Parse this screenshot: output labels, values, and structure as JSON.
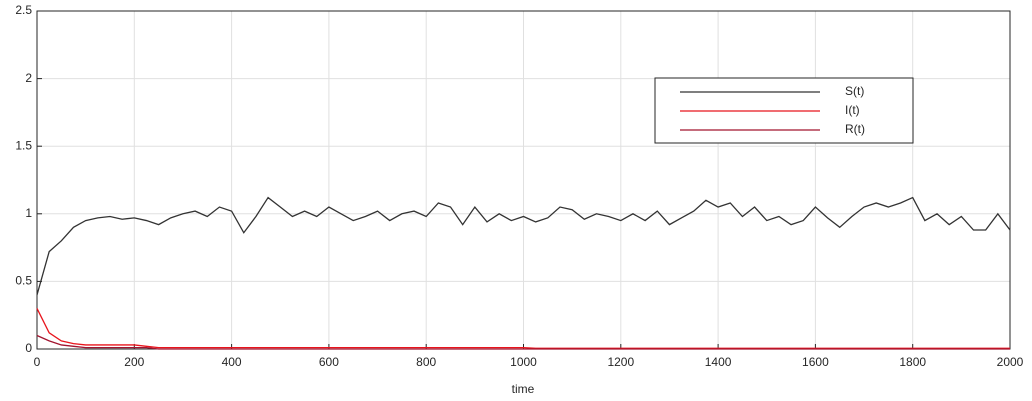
{
  "chart_data": {
    "type": "line",
    "x_label": "time",
    "x": [
      0,
      25,
      50,
      75,
      100,
      125,
      150,
      175,
      200,
      225,
      250,
      275,
      300,
      325,
      350,
      375,
      400,
      425,
      450,
      475,
      500,
      525,
      550,
      575,
      600,
      625,
      650,
      675,
      700,
      725,
      750,
      775,
      800,
      825,
      850,
      875,
      900,
      925,
      950,
      975,
      1000,
      1025,
      1050,
      1075,
      1100,
      1125,
      1150,
      1175,
      1200,
      1225,
      1250,
      1275,
      1300,
      1325,
      1350,
      1375,
      1400,
      1425,
      1450,
      1475,
      1500,
      1525,
      1550,
      1575,
      1600,
      1625,
      1650,
      1675,
      1700,
      1725,
      1750,
      1775,
      1800,
      1825,
      1850,
      1875,
      1900,
      1925,
      1950,
      1975,
      2000
    ],
    "series": [
      {
        "name": "S(t)",
        "color": "#333333",
        "values": [
          0.4,
          0.72,
          0.8,
          0.9,
          0.95,
          0.97,
          0.98,
          0.96,
          0.97,
          0.95,
          0.92,
          0.97,
          1.0,
          1.02,
          0.98,
          1.05,
          1.02,
          0.86,
          0.98,
          1.12,
          1.05,
          0.98,
          1.02,
          0.98,
          1.05,
          1.0,
          0.95,
          0.98,
          1.02,
          0.95,
          1.0,
          1.02,
          0.98,
          1.08,
          1.05,
          0.92,
          1.05,
          0.94,
          1.0,
          0.95,
          0.98,
          0.94,
          0.97,
          1.05,
          1.03,
          0.96,
          1.0,
          0.98,
          0.95,
          1.0,
          0.95,
          1.02,
          0.92,
          0.97,
          1.02,
          1.1,
          1.05,
          1.08,
          0.98,
          1.05,
          0.95,
          0.98,
          0.92,
          0.95,
          1.05,
          0.97,
          0.9,
          0.98,
          1.05,
          1.08,
          1.05,
          1.08,
          1.12,
          0.95,
          1.0,
          0.92,
          0.98,
          0.88,
          0.88,
          1.0,
          0.88
        ]
      },
      {
        "name": "I(t)",
        "color": "#e8141c",
        "values": [
          0.3,
          0.12,
          0.06,
          0.04,
          0.03,
          0.03,
          0.03,
          0.03,
          0.03,
          0.02,
          0.01,
          0.01,
          0.01,
          0.01,
          0.01,
          0.01,
          0.01,
          0.01,
          0.01,
          0.01,
          0.01,
          0.01,
          0.01,
          0.01,
          0.01,
          0.01,
          0.01,
          0.01,
          0.01,
          0.01,
          0.01,
          0.01,
          0.01,
          0.01,
          0.01,
          0.01,
          0.01,
          0.01,
          0.01,
          0.01,
          0.01,
          0.005,
          0.005,
          0.005,
          0.005,
          0.005,
          0.005,
          0.005,
          0.005,
          0.005,
          0.005,
          0.005,
          0.005,
          0.005,
          0.005,
          0.005,
          0.005,
          0.005,
          0.005,
          0.005,
          0.005,
          0.005,
          0.005,
          0.005,
          0.005,
          0.005,
          0.005,
          0.005,
          0.005,
          0.005,
          0.005,
          0.005,
          0.005,
          0.005,
          0.005,
          0.005,
          0.005,
          0.005,
          0.005,
          0.005,
          0.005
        ]
      },
      {
        "name": "R(t)",
        "color": "#a2142f",
        "values": [
          0.1,
          0.06,
          0.03,
          0.02,
          0.01,
          0.01,
          0.01,
          0.01,
          0.01,
          0.01,
          0,
          0,
          0,
          0,
          0,
          0,
          0,
          0,
          0,
          0,
          0,
          0,
          0,
          0,
          0,
          0,
          0,
          0,
          0,
          0,
          0,
          0,
          0,
          0,
          0,
          0,
          0,
          0,
          0,
          0,
          0,
          0,
          0,
          0,
          0,
          0,
          0,
          0,
          0,
          0,
          0,
          0,
          0,
          0,
          0,
          0,
          0,
          0,
          0,
          0,
          0,
          0,
          0,
          0,
          0,
          0,
          0,
          0,
          0,
          0,
          0,
          0,
          0,
          0,
          0,
          0,
          0,
          0,
          0,
          0,
          0
        ]
      }
    ],
    "xlim": [
      0,
      2000
    ],
    "xticks": [
      0,
      200,
      400,
      600,
      800,
      1000,
      1200,
      1400,
      1600,
      1800,
      2000
    ],
    "ylim": [
      0,
      2.5
    ],
    "yticks": [
      0,
      0.5,
      1,
      1.5,
      2,
      2.5
    ],
    "grid": true,
    "legend": "northeast"
  }
}
